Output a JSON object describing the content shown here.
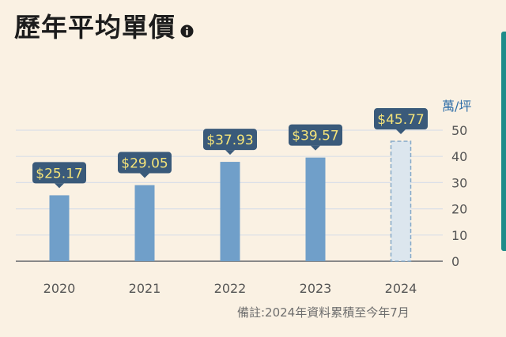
{
  "header": {
    "title": "歷年平均單價",
    "info_icon": "info-icon"
  },
  "footnote": "備註:2024年資料累積至今年7月",
  "colors": {
    "bar": "#709fc9",
    "bar_projected_fill": "#dce6ee",
    "bar_projected_stroke": "#86a9c8",
    "label_bg": "#3a5a7a",
    "label_text": "#f5e479",
    "grid": "#d9dfe8",
    "axis": "#888888",
    "unit": "#2f6ea8",
    "accent_strip": "#1f8c8a"
  },
  "chart_data": {
    "type": "bar",
    "categories": [
      "2020",
      "2021",
      "2022",
      "2023",
      "2024"
    ],
    "values": [
      25.17,
      29.05,
      37.93,
      39.57,
      45.77
    ],
    "value_labels": [
      "$25.17",
      "$29.05",
      "$37.93",
      "$39.57",
      "$45.77"
    ],
    "projected": [
      false,
      false,
      false,
      false,
      true
    ],
    "ylabel": "萬/坪",
    "ylim": [
      0,
      50
    ],
    "yticks": [
      0,
      10,
      20,
      30,
      40,
      50
    ],
    "ytick_labels": [
      "0",
      "10",
      "20",
      "30",
      "40",
      "50"
    ],
    "grid": true,
    "yaxis_position": "right"
  }
}
